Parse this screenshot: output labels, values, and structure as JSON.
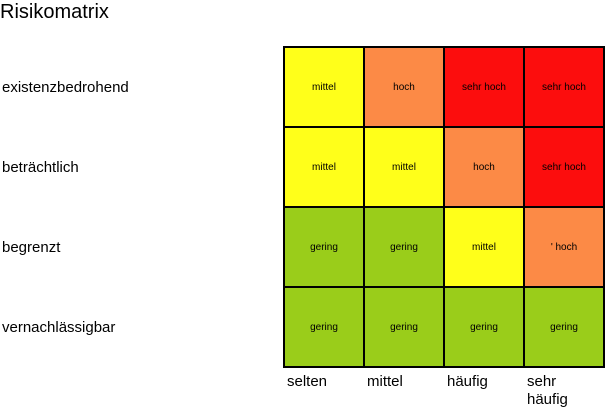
{
  "title": "Risikomatrix",
  "colors": {
    "gering": "#9acd1a",
    "mittel": "#ffff1a",
    "hoch": "#fc8a46",
    "sehr hoch": "#fc0d0d"
  },
  "rows": [
    {
      "label": "existenzbedrohend",
      "cells": [
        "mittel",
        "hoch",
        "sehr hoch",
        "sehr hoch"
      ]
    },
    {
      "label": "beträchtlich",
      "cells": [
        "mittel",
        "mittel",
        "hoch",
        "sehr hoch"
      ]
    },
    {
      "label": "begrenzt",
      "cells": [
        "gering",
        "gering",
        "mittel",
        "' hoch"
      ]
    },
    {
      "label": "vernachlässigbar",
      "cells": [
        "gering",
        "gering",
        "gering",
        "gering"
      ]
    }
  ],
  "cell_levels": [
    [
      "mittel",
      "hoch",
      "sehr hoch",
      "sehr hoch"
    ],
    [
      "mittel",
      "mittel",
      "hoch",
      "sehr hoch"
    ],
    [
      "gering",
      "gering",
      "mittel",
      "hoch"
    ],
    [
      "gering",
      "gering",
      "gering",
      "gering"
    ]
  ],
  "columns": [
    {
      "label": "selten"
    },
    {
      "label": "mittel"
    },
    {
      "label": "häufig"
    },
    {
      "label": "sehr häufig"
    }
  ]
}
